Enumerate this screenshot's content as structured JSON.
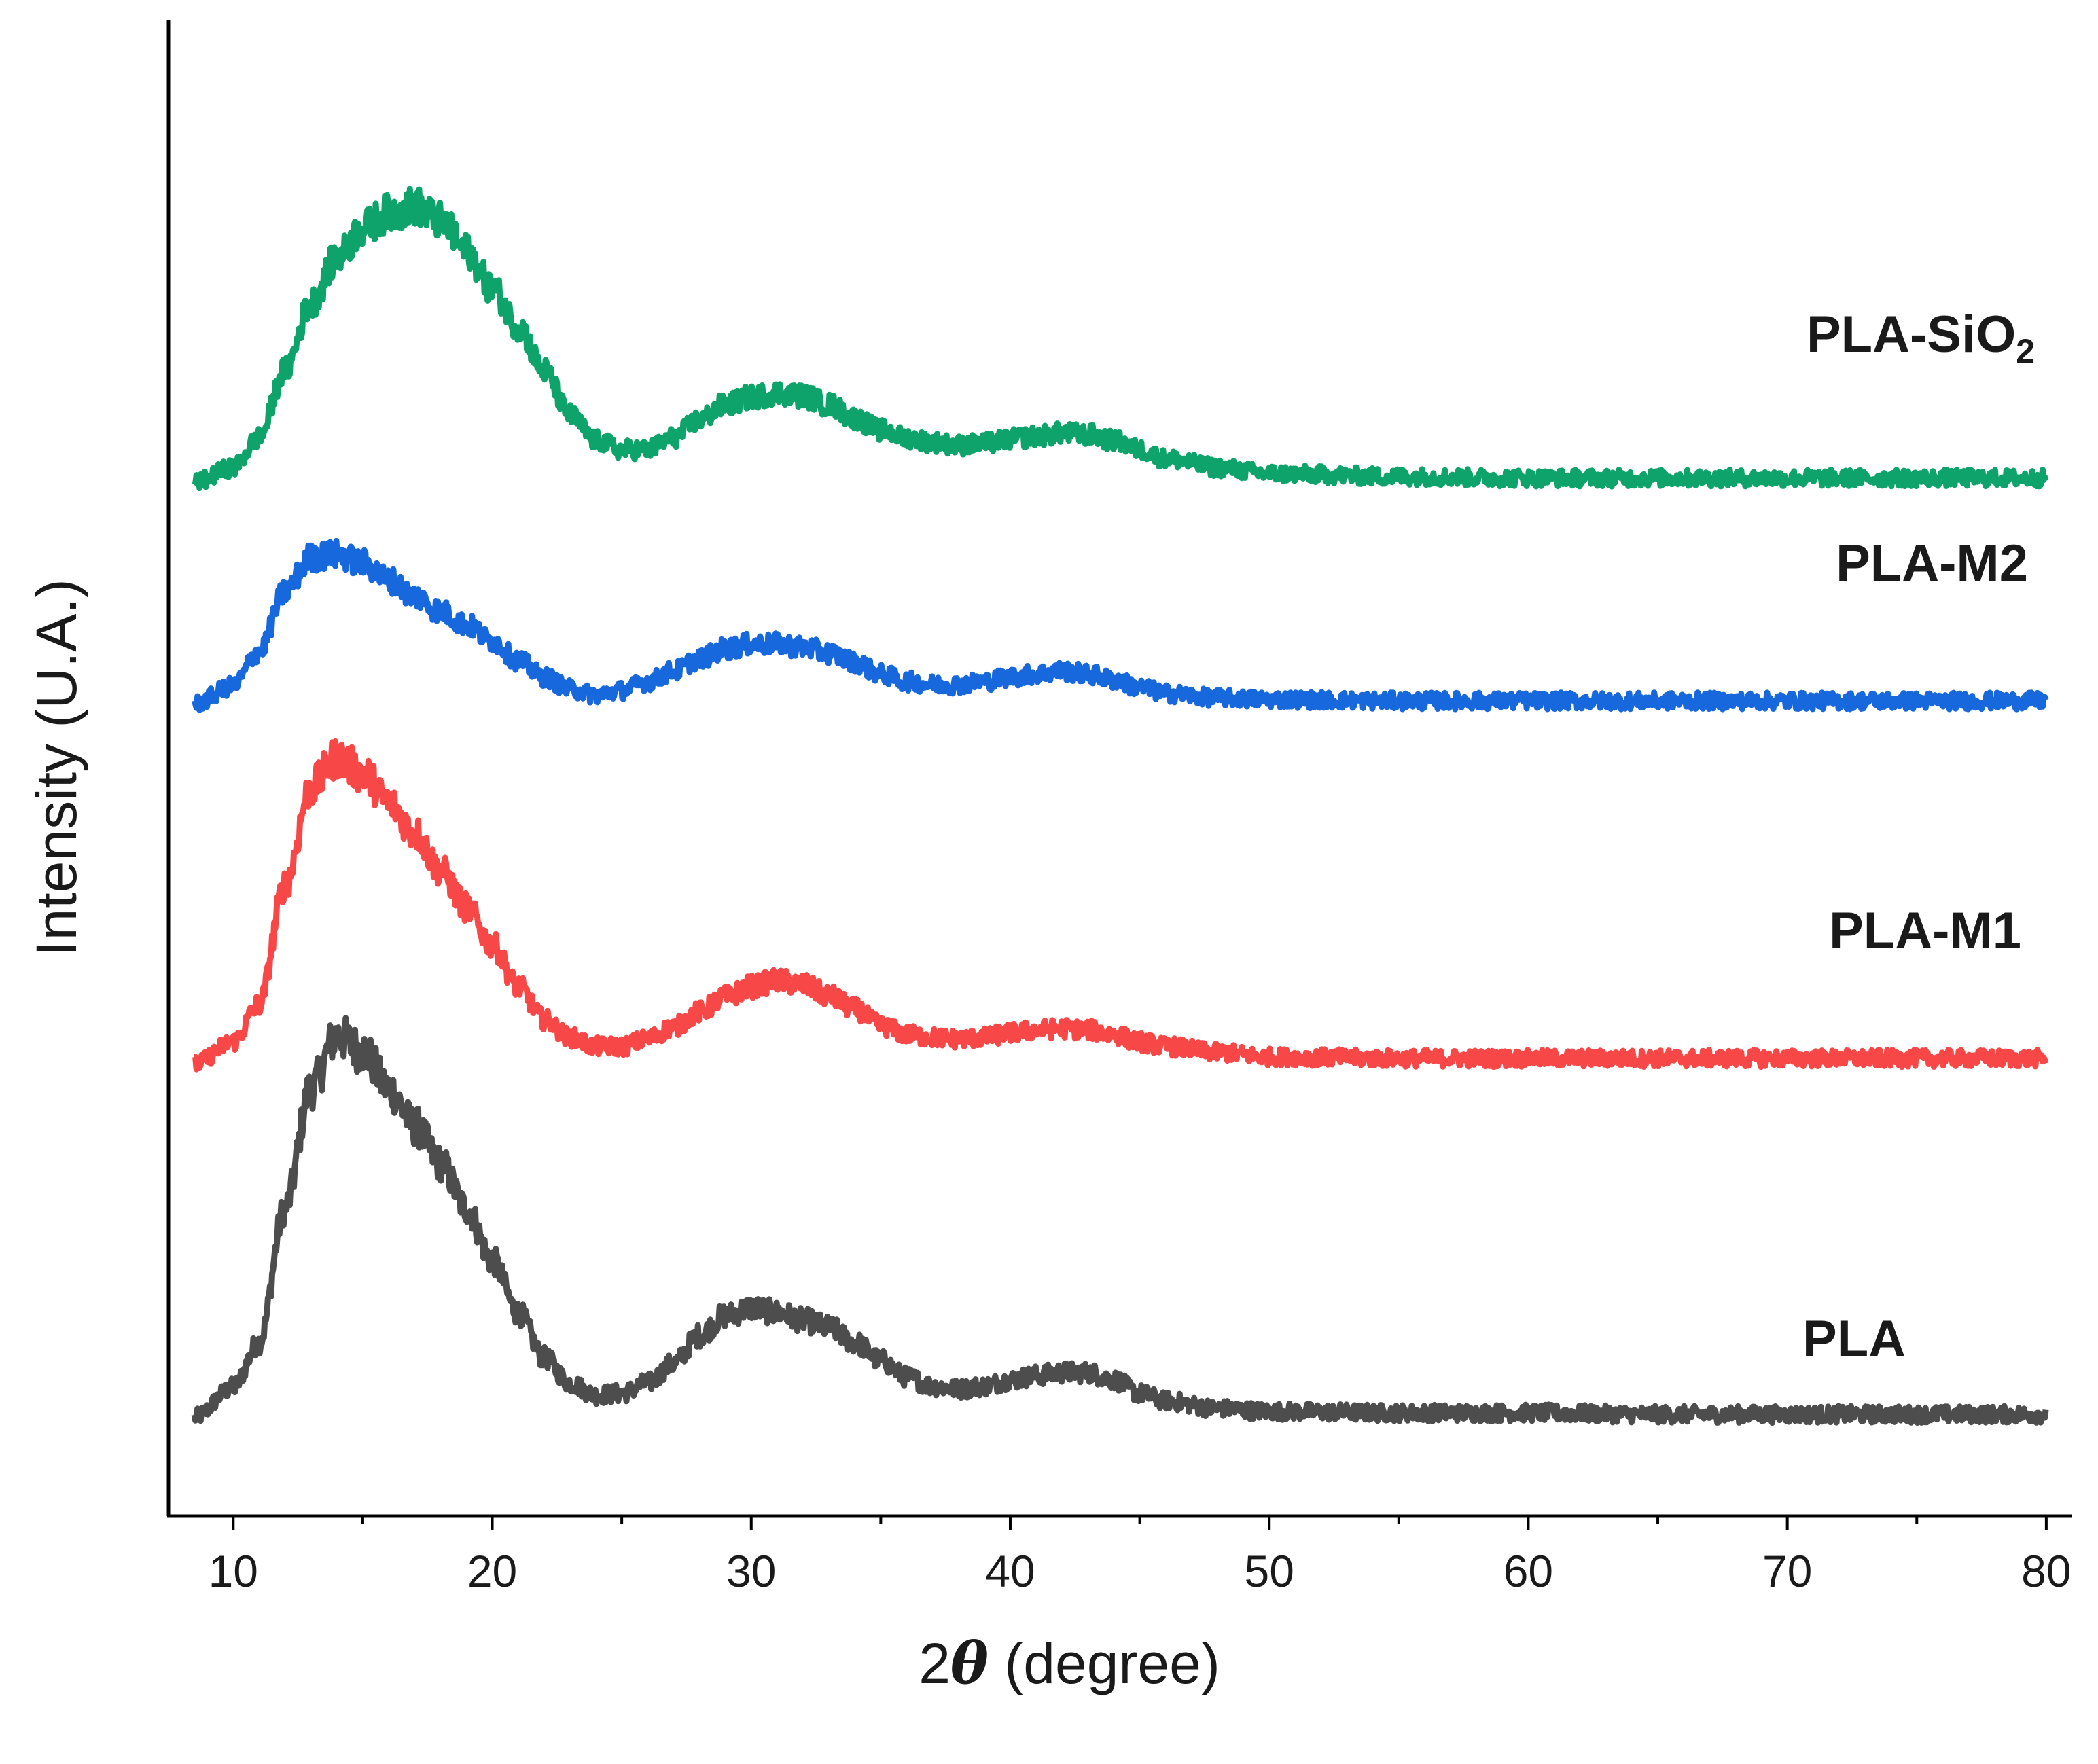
{
  "chart_data": {
    "type": "line",
    "title": "",
    "xlabel": "2θ (degree)",
    "xlabel_prefix": "2",
    "xlabel_symbol": "θ",
    "xlabel_suffix": " (degree)",
    "ylabel": "Intensity (U.A.)",
    "xlim": [
      7.5,
      81
    ],
    "ylim": [
      0,
      100
    ],
    "x_ticks": [
      10,
      20,
      30,
      40,
      50,
      60,
      70,
      80
    ],
    "x_tick_labels": [
      "10",
      "20",
      "30",
      "40",
      "50",
      "60",
      "70",
      "80"
    ],
    "y_ticks_shown": false,
    "grid": false,
    "legend": "inline labels at right end of each curve",
    "series": [
      {
        "name": "PLA",
        "label_main": "PLA",
        "label_sub": "",
        "color": "#4d4d4d",
        "offset": 6.6,
        "points": [
          [
            8.5,
            0
          ],
          [
            10,
            2
          ],
          [
            11,
            5
          ],
          [
            12,
            14
          ],
          [
            13,
            22
          ],
          [
            14,
            25.5
          ],
          [
            15,
            24.5
          ],
          [
            16,
            22
          ],
          [
            17,
            19.5
          ],
          [
            18,
            17
          ],
          [
            19,
            14
          ],
          [
            20,
            10.5
          ],
          [
            21,
            7
          ],
          [
            22,
            4
          ],
          [
            23,
            2.3
          ],
          [
            24,
            1.5
          ],
          [
            25,
            1.6
          ],
          [
            26,
            2.3
          ],
          [
            27,
            3.6
          ],
          [
            28,
            5.5
          ],
          [
            29,
            6.8
          ],
          [
            30,
            7.3
          ],
          [
            31,
            7
          ],
          [
            32,
            6.5
          ],
          [
            33,
            6
          ],
          [
            34,
            5
          ],
          [
            35,
            3.8
          ],
          [
            36,
            2.7
          ],
          [
            37,
            2.1
          ],
          [
            38,
            1.9
          ],
          [
            39,
            2.1
          ],
          [
            40,
            2.5
          ],
          [
            41,
            2.8
          ],
          [
            42,
            3
          ],
          [
            43,
            3
          ],
          [
            44,
            2.5
          ],
          [
            45,
            1.6
          ],
          [
            46,
            1.1
          ],
          [
            48,
            0.6
          ],
          [
            50,
            0.4
          ],
          [
            55,
            0.3
          ],
          [
            60,
            0.3
          ],
          [
            65,
            0.2
          ],
          [
            70,
            0.2
          ],
          [
            75,
            0.2
          ],
          [
            80,
            0.2
          ]
        ]
      },
      {
        "name": "PLA-M1",
        "label_main": "PLA-M1",
        "label_sub": "",
        "color": "#f74747",
        "offset": 30.2,
        "points": [
          [
            8.5,
            0
          ],
          [
            10,
            1.5
          ],
          [
            11,
            4
          ],
          [
            12,
            12
          ],
          [
            13,
            18.5
          ],
          [
            14,
            20.5
          ],
          [
            15,
            19.5
          ],
          [
            16,
            17.5
          ],
          [
            17,
            15.5
          ],
          [
            18,
            13
          ],
          [
            19,
            10.5
          ],
          [
            20,
            8
          ],
          [
            21,
            5.2
          ],
          [
            22,
            3
          ],
          [
            23,
            1.8
          ],
          [
            24,
            1.2
          ],
          [
            25,
            1.2
          ],
          [
            26,
            1.7
          ],
          [
            27,
            2.5
          ],
          [
            28,
            3.5
          ],
          [
            29,
            4.5
          ],
          [
            30,
            5.2
          ],
          [
            31,
            5.6
          ],
          [
            32,
            5.3
          ],
          [
            33,
            4.6
          ],
          [
            34,
            3.7
          ],
          [
            35,
            2.6
          ],
          [
            36,
            2
          ],
          [
            37,
            1.8
          ],
          [
            38,
            1.7
          ],
          [
            39,
            1.8
          ],
          [
            40,
            2.1
          ],
          [
            41,
            2.3
          ],
          [
            42,
            2.4
          ],
          [
            43,
            2.3
          ],
          [
            44,
            2
          ],
          [
            45,
            1.5
          ],
          [
            46,
            1.2
          ],
          [
            48,
            0.8
          ],
          [
            50,
            0.5
          ],
          [
            55,
            0.4
          ],
          [
            60,
            0.4
          ],
          [
            65,
            0.4
          ],
          [
            70,
            0.4
          ],
          [
            75,
            0.4
          ],
          [
            80,
            0.4
          ]
        ]
      },
      {
        "name": "PLA-M2",
        "label_main": "PLA-M2",
        "label_sub": "",
        "color": "#1767dd",
        "offset": 54.3,
        "points": [
          [
            8.5,
            0
          ],
          [
            10,
            1.2
          ],
          [
            11,
            3.5
          ],
          [
            12,
            7.5
          ],
          [
            13,
            9.8
          ],
          [
            14,
            10
          ],
          [
            15,
            9.4
          ],
          [
            16,
            8.3
          ],
          [
            17,
            7.2
          ],
          [
            18,
            6.2
          ],
          [
            19,
            5.3
          ],
          [
            20,
            4.2
          ],
          [
            21,
            2.9
          ],
          [
            22,
            1.8
          ],
          [
            23,
            1
          ],
          [
            24,
            0.6
          ],
          [
            25,
            0.9
          ],
          [
            26,
            1.5
          ],
          [
            27,
            2.2
          ],
          [
            28,
            3
          ],
          [
            29,
            3.7
          ],
          [
            30,
            4
          ],
          [
            31,
            4
          ],
          [
            32,
            3.8
          ],
          [
            33,
            3.4
          ],
          [
            34,
            2.8
          ],
          [
            35,
            2
          ],
          [
            36,
            1.5
          ],
          [
            37,
            1.3
          ],
          [
            38,
            1.3
          ],
          [
            39,
            1.5
          ],
          [
            40,
            1.8
          ],
          [
            41,
            2
          ],
          [
            42,
            2.2
          ],
          [
            43,
            2
          ],
          [
            44,
            1.6
          ],
          [
            45,
            1.1
          ],
          [
            46,
            0.7
          ],
          [
            48,
            0.4
          ],
          [
            50,
            0.3
          ],
          [
            55,
            0.2
          ],
          [
            60,
            0.2
          ],
          [
            65,
            0.2
          ],
          [
            70,
            0.2
          ],
          [
            75,
            0.2
          ],
          [
            80,
            0.2
          ]
        ]
      },
      {
        "name": "PLA-SiO2",
        "label_main": "PLA-SiO",
        "label_sub": "2",
        "color": "#0ea36a",
        "offset": 69.1,
        "points": [
          [
            8.5,
            0
          ],
          [
            10,
            1
          ],
          [
            11,
            3
          ],
          [
            12,
            7.5
          ],
          [
            13,
            12
          ],
          [
            14,
            15
          ],
          [
            15,
            17
          ],
          [
            16,
            18
          ],
          [
            17,
            18.5
          ],
          [
            18,
            17.5
          ],
          [
            19,
            15.5
          ],
          [
            20,
            13
          ],
          [
            21,
            10.5
          ],
          [
            22,
            7.5
          ],
          [
            23,
            4.5
          ],
          [
            24,
            2.8
          ],
          [
            25,
            2.2
          ],
          [
            26,
            2.2
          ],
          [
            27,
            3
          ],
          [
            28,
            4.2
          ],
          [
            29,
            5.2
          ],
          [
            30,
            5.7
          ],
          [
            31,
            6
          ],
          [
            32,
            5.8
          ],
          [
            33,
            5.2
          ],
          [
            34,
            4.3
          ],
          [
            35,
            3.5
          ],
          [
            36,
            3
          ],
          [
            37,
            2.7
          ],
          [
            38,
            2.5
          ],
          [
            39,
            2.6
          ],
          [
            40,
            2.9
          ],
          [
            41,
            3.1
          ],
          [
            42,
            3.3
          ],
          [
            43,
            3.2
          ],
          [
            44,
            2.8
          ],
          [
            45,
            2.2
          ],
          [
            46,
            1.6
          ],
          [
            48,
            1
          ],
          [
            50,
            0.6
          ],
          [
            55,
            0.4
          ],
          [
            60,
            0.3
          ],
          [
            65,
            0.3
          ],
          [
            70,
            0.3
          ],
          [
            75,
            0.3
          ],
          [
            80,
            0.3
          ]
        ]
      }
    ]
  }
}
